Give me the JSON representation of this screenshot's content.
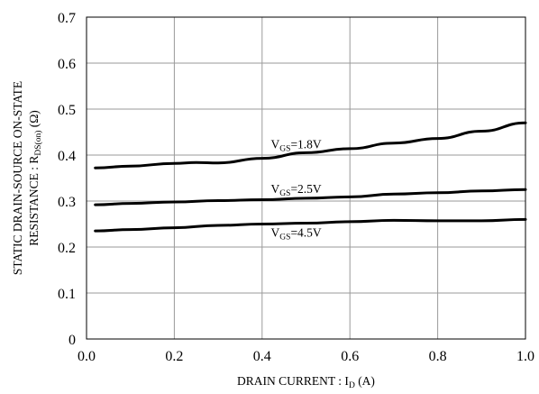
{
  "chart_data": {
    "type": "line",
    "title": "",
    "xlabel": {
      "main": "DRAIN CURRENT : I",
      "sub": "D",
      "unit": " (A)"
    },
    "ylabel": {
      "line1": "STATIC DRAIN-SOURCE ON-STATE",
      "line2_main": "RESISTANCE : R",
      "line2_sub": "DS(on)",
      "line2_unit": " (Ω)"
    },
    "xlim": [
      0.0,
      1.0
    ],
    "ylim": [
      0,
      0.7
    ],
    "x_ticks": [
      {
        "value": 0.0,
        "label": "0.0"
      },
      {
        "value": 0.2,
        "label": "0.2"
      },
      {
        "value": 0.4,
        "label": "0.4"
      },
      {
        "value": 0.6,
        "label": "0.6"
      },
      {
        "value": 0.8,
        "label": "0.8"
      },
      {
        "value": 1.0,
        "label": "1.0"
      }
    ],
    "y_ticks": [
      {
        "value": 0,
        "label": "0"
      },
      {
        "value": 0.1,
        "label": "0.1"
      },
      {
        "value": 0.2,
        "label": "0.2"
      },
      {
        "value": 0.3,
        "label": "0.3"
      },
      {
        "value": 0.4,
        "label": "0.4"
      },
      {
        "value": 0.5,
        "label": "0.5"
      },
      {
        "value": 0.6,
        "label": "0.6"
      },
      {
        "value": 0.7,
        "label": "0.7"
      }
    ],
    "grid": true,
    "series": [
      {
        "name": {
          "main": "V",
          "sub": "GS",
          "suffix": "=1.8V"
        },
        "x": [
          0.02,
          0.1,
          0.2,
          0.25,
          0.3,
          0.4,
          0.5,
          0.6,
          0.7,
          0.8,
          0.9,
          1.0
        ],
        "y": [
          0.372,
          0.376,
          0.382,
          0.384,
          0.383,
          0.393,
          0.405,
          0.414,
          0.426,
          0.436,
          0.452,
          0.47
        ]
      },
      {
        "name": {
          "main": "V",
          "sub": "GS",
          "suffix": "=2.5V"
        },
        "x": [
          0.02,
          0.1,
          0.2,
          0.3,
          0.4,
          0.5,
          0.6,
          0.7,
          0.8,
          0.9,
          1.0
        ],
        "y": [
          0.292,
          0.295,
          0.298,
          0.301,
          0.303,
          0.306,
          0.309,
          0.315,
          0.318,
          0.322,
          0.325
        ]
      },
      {
        "name": {
          "main": "V",
          "sub": "GS",
          "suffix": "=4.5V"
        },
        "x": [
          0.02,
          0.1,
          0.2,
          0.3,
          0.4,
          0.5,
          0.6,
          0.7,
          0.8,
          0.9,
          1.0
        ],
        "y": [
          0.235,
          0.238,
          0.242,
          0.247,
          0.25,
          0.252,
          0.255,
          0.258,
          0.257,
          0.257,
          0.26
        ]
      }
    ]
  }
}
